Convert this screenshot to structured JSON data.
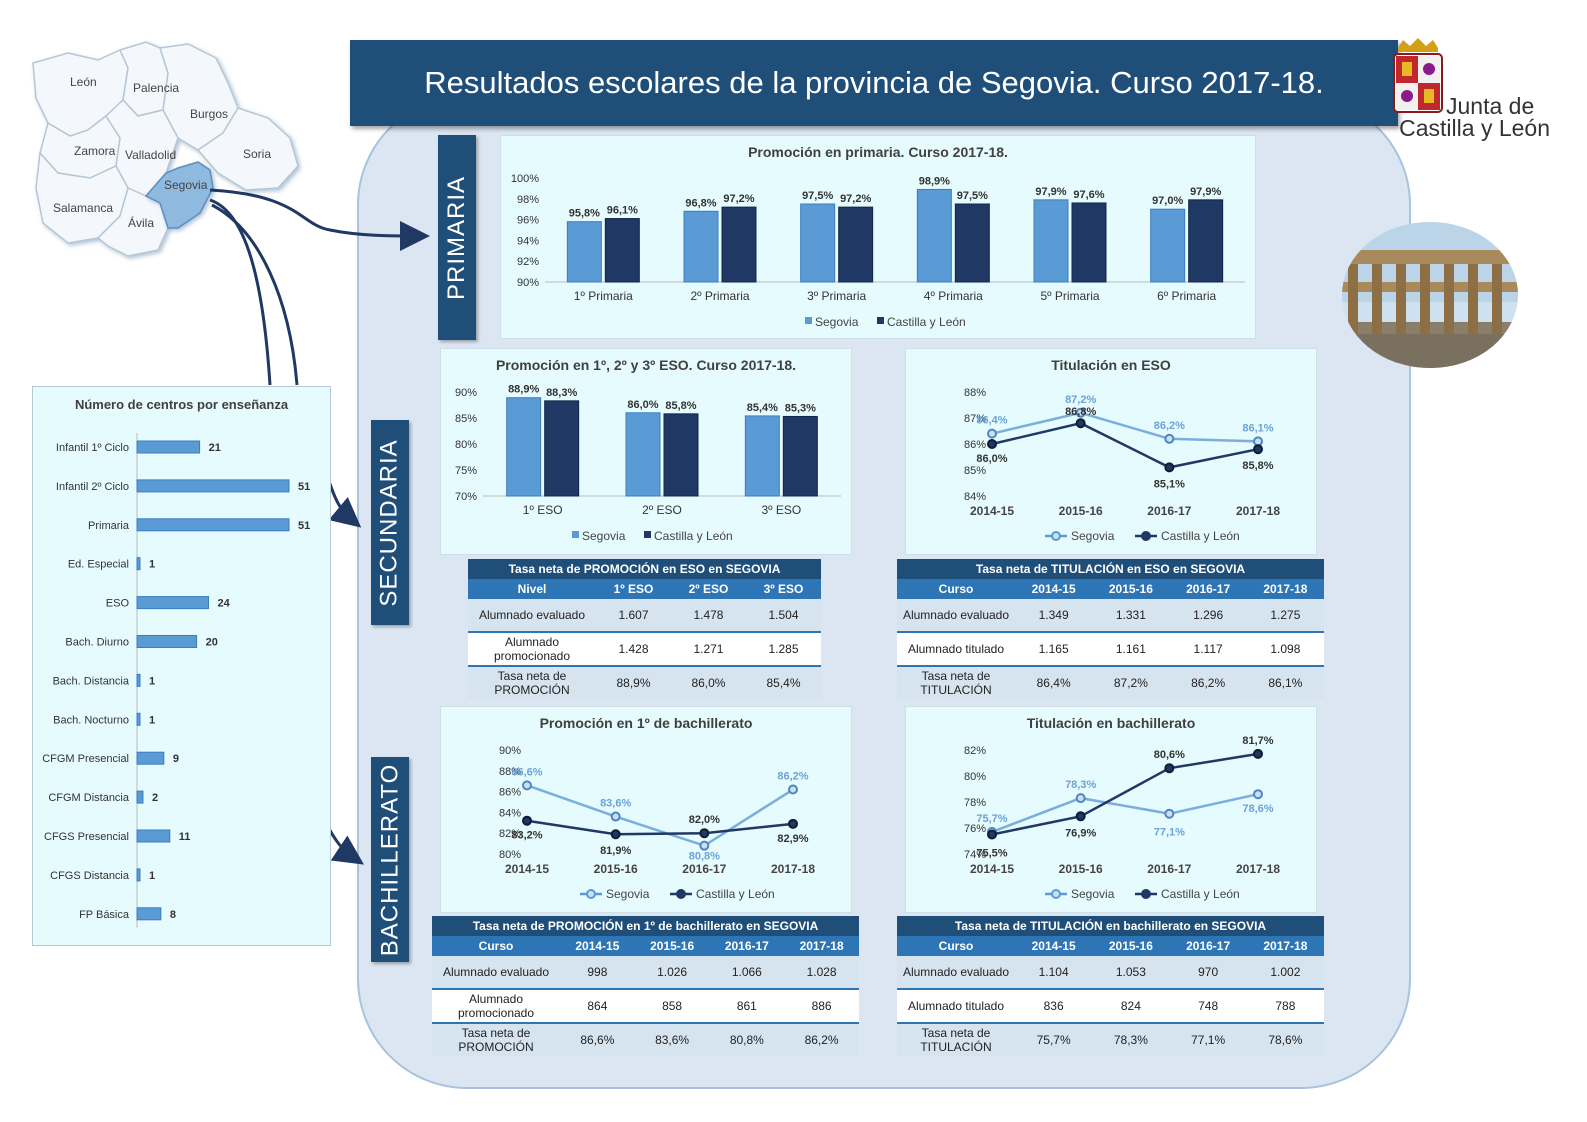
{
  "title": "Resultados escolares de la provincia de Segovia. Curso 2017-18.",
  "logo": {
    "line1": "Junta de",
    "line2": "Castilla y León"
  },
  "map": {
    "provinces": [
      "León",
      "Palencia",
      "Burgos",
      "Zamora",
      "Valladolid",
      "Soria",
      "Segovia",
      "Salamanca",
      "Ávila"
    ],
    "highlight": "Segovia"
  },
  "sections": {
    "primaria": "PRIMARIA",
    "secundaria": "SECUNDARIA",
    "bachillerato": "BACHILLERATO"
  },
  "legend": {
    "a": "Segovia",
    "b": "Castilla y León"
  },
  "colors": {
    "segovia": "#5b9bd5",
    "cyl": "#1f3864",
    "accent": "#1f4e79"
  },
  "centros": {
    "title": "Número de centros por enseñanza",
    "categories": [
      "Infantil 1º Ciclo",
      "Infantil 2º Ciclo",
      "Primaria",
      "Ed. Especial",
      "ESO",
      "Bach. Diurno",
      "Bach. Distancia",
      "Bach. Nocturno",
      "CFGM Presencial",
      "CFGM Distancia",
      "CFGS Presencial",
      "CFGS Distancia",
      "FP Básica"
    ],
    "values": [
      21,
      51,
      51,
      1,
      24,
      20,
      1,
      1,
      9,
      2,
      11,
      1,
      8
    ]
  },
  "chart_data": [
    {
      "id": "primaria",
      "type": "bar",
      "title": "Promoción en primaria. Curso 2017-18.",
      "categories": [
        "1º Primaria",
        "2º Primaria",
        "3º Primaria",
        "4º Primaria",
        "5º Primaria",
        "6º Primaria"
      ],
      "series": [
        {
          "name": "Segovia",
          "values": [
            95.8,
            96.8,
            97.5,
            98.9,
            97.9,
            97.0
          ],
          "labels": [
            "95,8%",
            "96,8%",
            "97,5%",
            "98,9%",
            "97,9%",
            "97,0%"
          ]
        },
        {
          "name": "Castilla y León",
          "values": [
            96.1,
            97.2,
            97.2,
            97.5,
            97.6,
            97.9
          ],
          "labels": [
            "96,1%",
            "97,2%",
            "97,2%",
            "97,5%",
            "97,6%",
            "97,9%"
          ]
        }
      ],
      "ylim": [
        90,
        100
      ],
      "yticks": [
        "90%",
        "92%",
        "94%",
        "96%",
        "98%",
        "100%"
      ],
      "legend_position": "bottom"
    },
    {
      "id": "eso-promo",
      "type": "bar",
      "title": "Promoción en 1º, 2º y 3º ESO. Curso 2017-18.",
      "categories": [
        "1º ESO",
        "2º ESO",
        "3º ESO"
      ],
      "series": [
        {
          "name": "Segovia",
          "values": [
            88.9,
            86.0,
            85.4
          ],
          "labels": [
            "88,9%",
            "86,0%",
            "85,4%"
          ]
        },
        {
          "name": "Castilla y León",
          "values": [
            88.3,
            85.8,
            85.3
          ],
          "labels": [
            "88,3%",
            "85,8%",
            "85,3%"
          ]
        }
      ],
      "ylim": [
        70,
        90
      ],
      "yticks": [
        "70%",
        "75%",
        "80%",
        "85%",
        "90%"
      ],
      "legend_position": "bottom"
    },
    {
      "id": "eso-tit",
      "type": "line",
      "title": "Titulación en ESO",
      "categories": [
        "2014-15",
        "2015-16",
        "2016-17",
        "2017-18"
      ],
      "series": [
        {
          "name": "Segovia",
          "values": [
            86.4,
            87.2,
            86.2,
            86.1
          ],
          "labels": [
            "86,4%",
            "87,2%",
            "86,2%",
            "86,1%"
          ]
        },
        {
          "name": "Castilla y León",
          "values": [
            86.0,
            86.8,
            85.1,
            85.8
          ],
          "labels": [
            "86,0%",
            "86,8%",
            "85,1%",
            "85,8%"
          ]
        }
      ],
      "ylim": [
        84,
        88
      ],
      "yticks": [
        "84%",
        "85%",
        "86%",
        "87%",
        "88%"
      ],
      "legend_position": "bottom"
    },
    {
      "id": "bach-promo",
      "type": "line",
      "title": "Promoción en 1º de bachillerato",
      "categories": [
        "2014-15",
        "2015-16",
        "2016-17",
        "2017-18"
      ],
      "series": [
        {
          "name": "Segovia",
          "values": [
            86.6,
            83.6,
            80.8,
            86.2
          ],
          "labels": [
            "86,6%",
            "83,6%",
            "80,8%",
            "86,2%"
          ]
        },
        {
          "name": "Castilla y León",
          "values": [
            83.2,
            81.9,
            82.0,
            82.9
          ],
          "labels": [
            "83,2%",
            "81,9%",
            "82,0%",
            "82,9%"
          ]
        }
      ],
      "ylim": [
        80,
        90
      ],
      "yticks": [
        "80%",
        "82%",
        "84%",
        "86%",
        "88%",
        "90%"
      ],
      "legend_position": "bottom"
    },
    {
      "id": "bach-tit",
      "type": "line",
      "title": "Titulación en bachillerato",
      "categories": [
        "2014-15",
        "2015-16",
        "2016-17",
        "2017-18"
      ],
      "series": [
        {
          "name": "Segovia",
          "values": [
            75.7,
            78.3,
            77.1,
            78.6
          ],
          "labels": [
            "75,7%",
            "78,3%",
            "77,1%",
            "78,6%"
          ]
        },
        {
          "name": "Castilla y León",
          "values": [
            75.5,
            76.9,
            80.6,
            81.7
          ],
          "labels": [
            "75,5%",
            "76,9%",
            "80,6%",
            "81,7%"
          ]
        }
      ],
      "ylim": [
        74,
        82
      ],
      "yticks": [
        "74%",
        "76%",
        "78%",
        "80%",
        "82%"
      ],
      "legend_position": "bottom"
    }
  ],
  "tables": {
    "eso_promo": {
      "caption": "Tasa neta de PROMOCIÓN en ESO en SEGOVIA",
      "header": [
        "Nivel",
        "1º ESO",
        "2º ESO",
        "3º ESO"
      ],
      "rows": [
        [
          "Alumnado evaluado",
          "1.607",
          "1.478",
          "1.504"
        ],
        [
          "Alumnado promocionado",
          "1.428",
          "1.271",
          "1.285"
        ],
        [
          "Tasa neta de PROMOCIÓN",
          "88,9%",
          "86,0%",
          "85,4%"
        ]
      ]
    },
    "eso_tit": {
      "caption": "Tasa neta de TITULACIÓN en ESO en SEGOVIA",
      "header": [
        "Curso",
        "2014-15",
        "2015-16",
        "2016-17",
        "2017-18"
      ],
      "rows": [
        [
          "Alumnado evaluado",
          "1.349",
          "1.331",
          "1.296",
          "1.275"
        ],
        [
          "Alumnado titulado",
          "1.165",
          "1.161",
          "1.117",
          "1.098"
        ],
        [
          "Tasa neta de TITULACIÓN",
          "86,4%",
          "87,2%",
          "86,2%",
          "86,1%"
        ]
      ]
    },
    "bach_promo": {
      "caption": "Tasa neta de PROMOCIÓN en 1º de bachillerato en SEGOVIA",
      "header": [
        "Curso",
        "2014-15",
        "2015-16",
        "2016-17",
        "2017-18"
      ],
      "rows": [
        [
          "Alumnado evaluado",
          "998",
          "1.026",
          "1.066",
          "1.028"
        ],
        [
          "Alumnado promocionado",
          "864",
          "858",
          "861",
          "886"
        ],
        [
          "Tasa neta de PROMOCIÓN",
          "86,6%",
          "83,6%",
          "80,8%",
          "86,2%"
        ]
      ]
    },
    "bach_tit": {
      "caption": "Tasa neta de TITULACIÓN en bachillerato en SEGOVIA",
      "header": [
        "Curso",
        "2014-15",
        "2015-16",
        "2016-17",
        "2017-18"
      ],
      "rows": [
        [
          "Alumnado evaluado",
          "1.104",
          "1.053",
          "970",
          "1.002"
        ],
        [
          "Alumnado titulado",
          "836",
          "824",
          "748",
          "788"
        ],
        [
          "Tasa neta de TITULACIÓN",
          "75,7%",
          "78,3%",
          "77,1%",
          "78,6%"
        ]
      ]
    }
  }
}
